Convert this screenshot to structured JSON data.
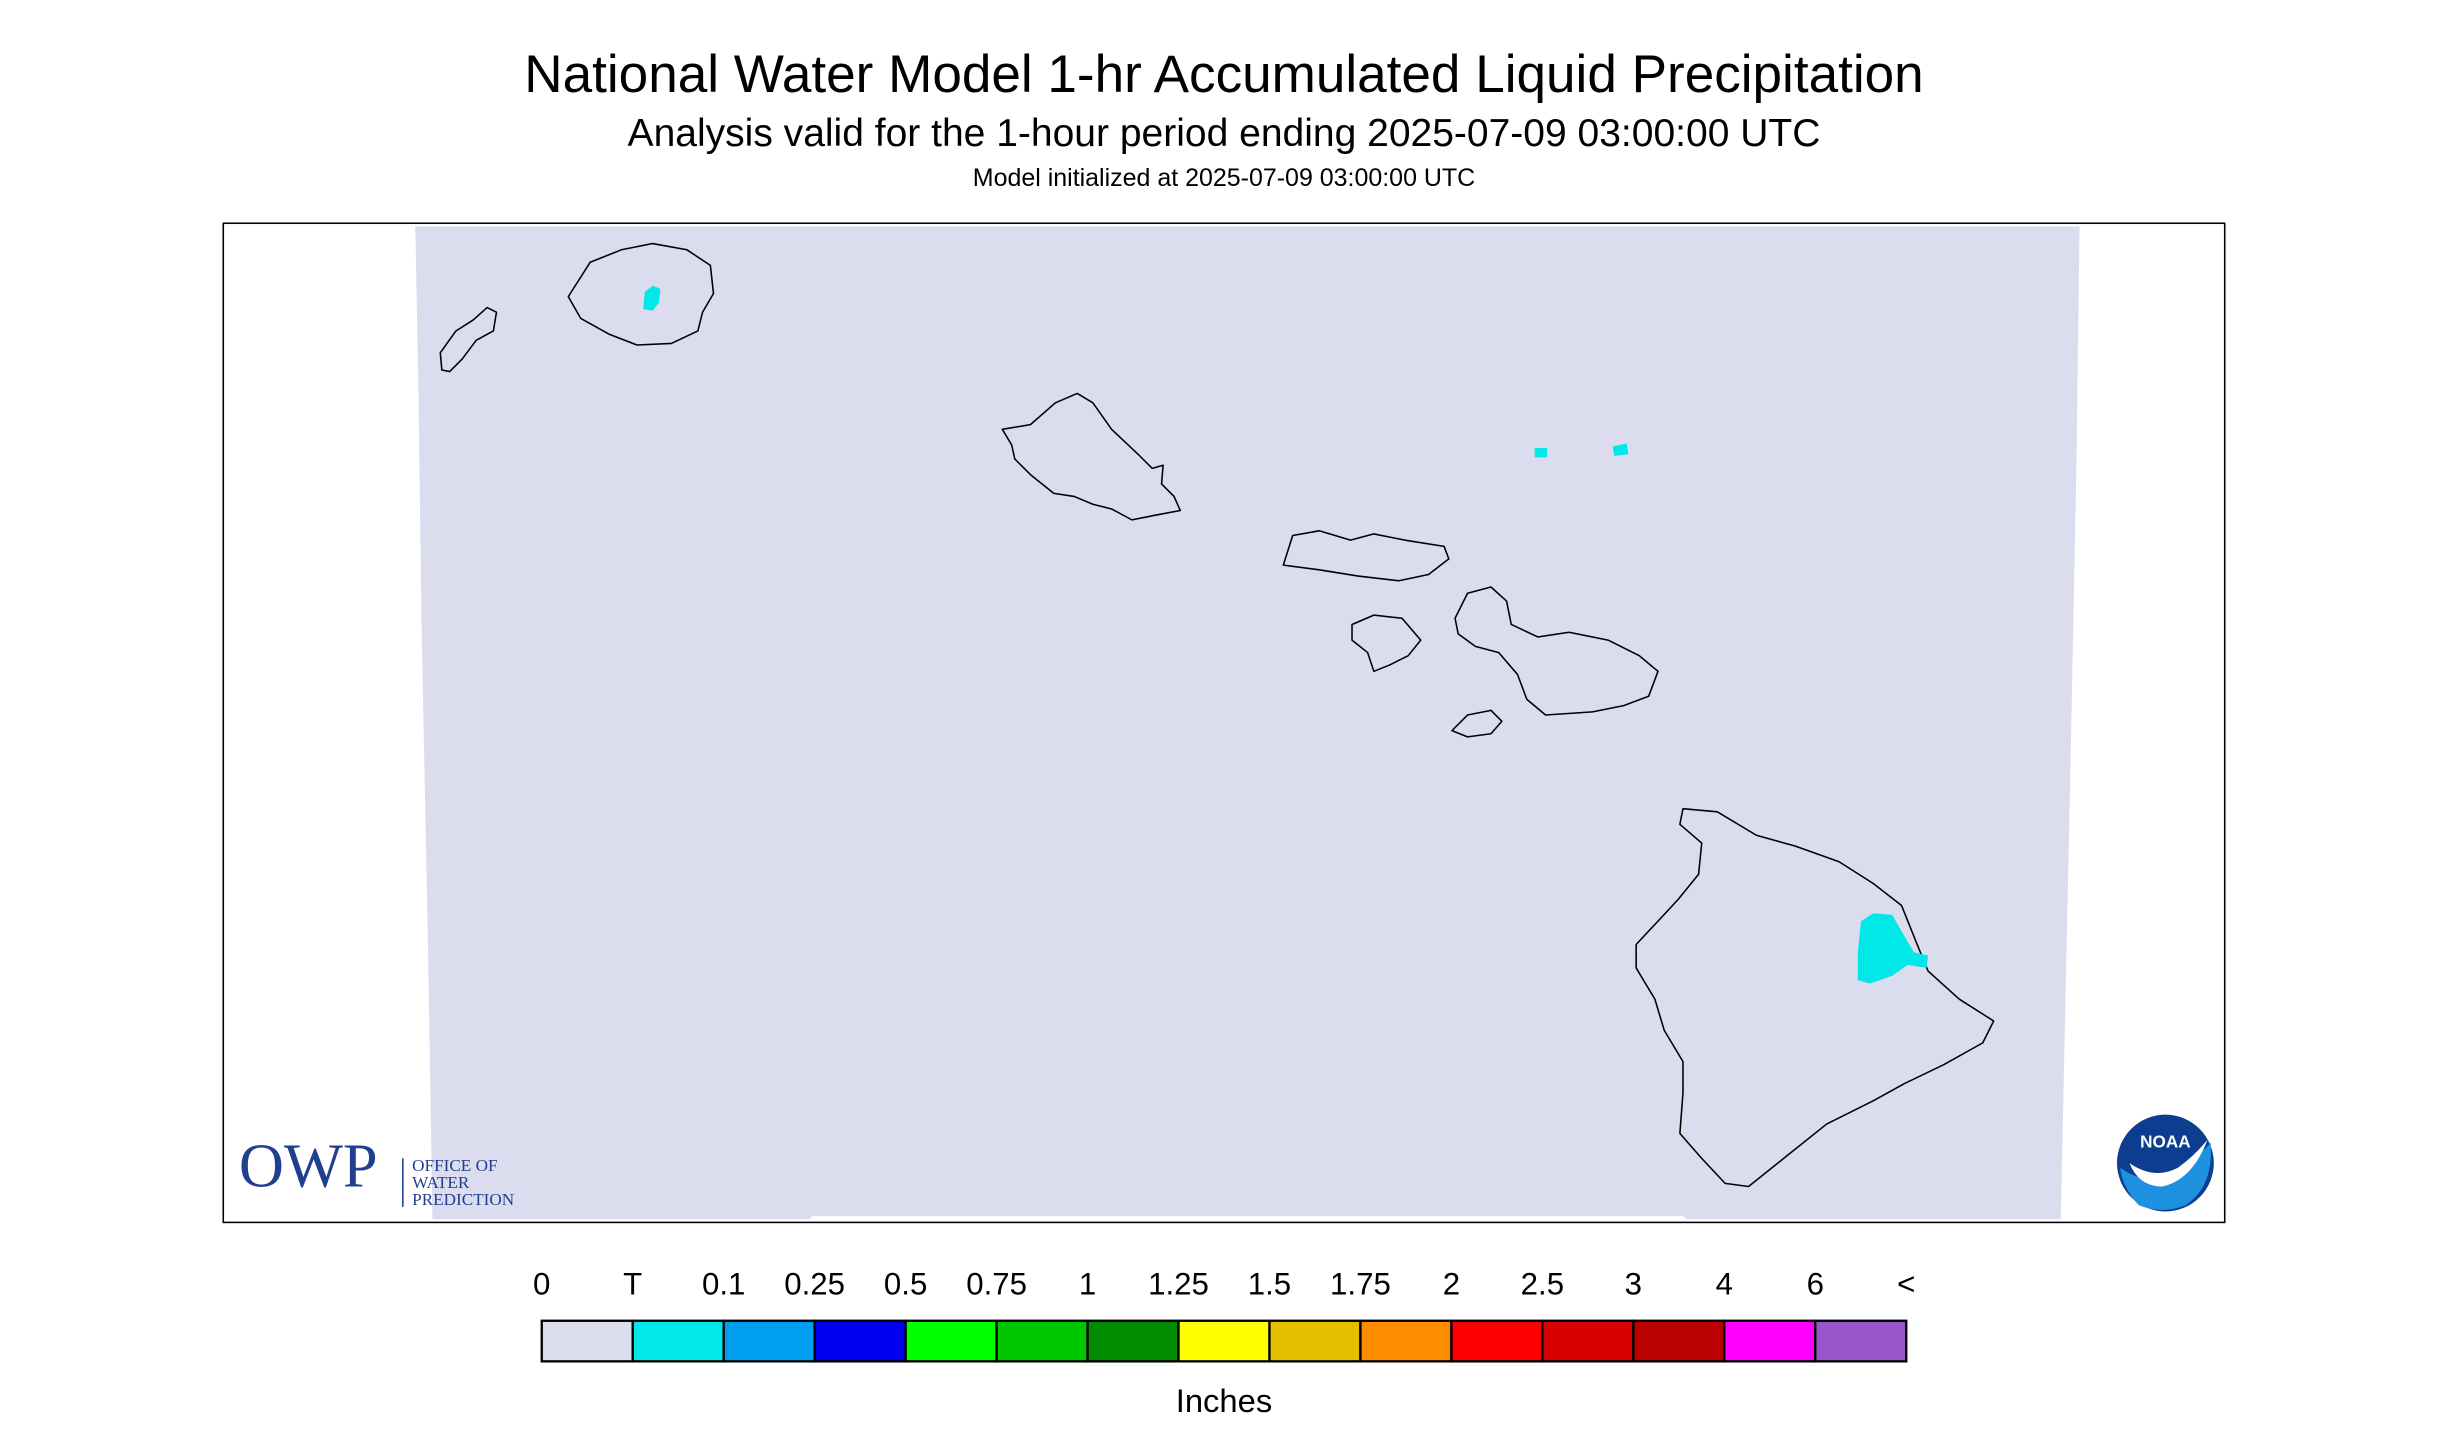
{
  "header": {
    "title": "National Water Model 1-hr Accumulated Liquid Precipitation",
    "subtitle": "Analysis valid for the 1-hour period ending 2025-07-09 03:00:00 UTC",
    "initialized": "Model initialized at 2025-07-09 03:00:00 UTC"
  },
  "legend": {
    "labels": [
      "0",
      "T",
      "0.1",
      "0.25",
      "0.5",
      "0.75",
      "1",
      "1.25",
      "1.5",
      "1.75",
      "2",
      "2.5",
      "3",
      "4",
      "6",
      "<"
    ],
    "colors": [
      "#dcdcef",
      "#00e8e8",
      "#009ef0",
      "#0000f0",
      "#00ff00",
      "#00c800",
      "#008c00",
      "#ffff00",
      "#e6be00",
      "#ff8c00",
      "#ff0000",
      "#d80000",
      "#bb0000",
      "#ff00ff",
      "#9955cc"
    ],
    "unit": "Inches"
  },
  "logos": {
    "owp": "OWP",
    "owp_text": [
      "OFFICE OF",
      "WATER",
      "PREDICTION"
    ],
    "noaa": "NOAA"
  }
}
